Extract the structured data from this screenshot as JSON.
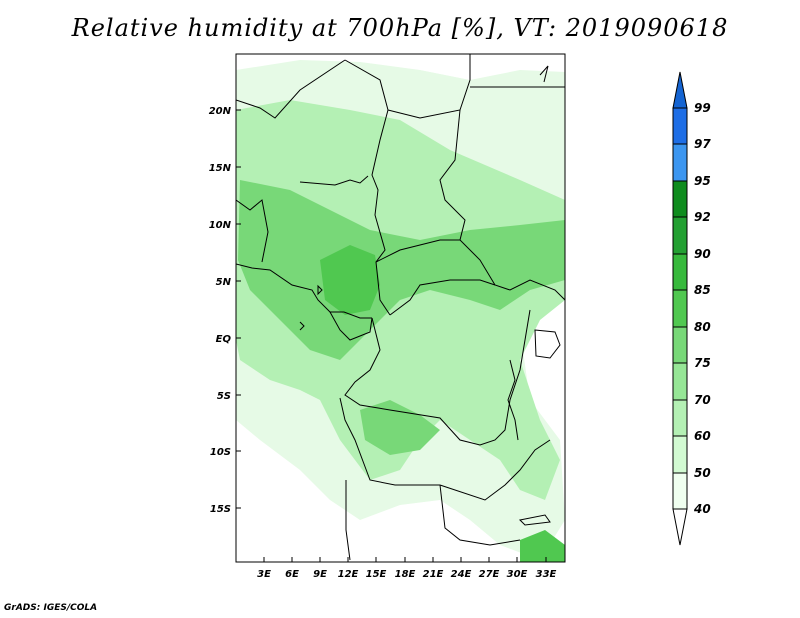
{
  "title": "Relative humidity at 700hPa [%], VT: 2019090618",
  "footer": "GrADS: IGES/COLA",
  "map": {
    "lat_ticks": [
      "20N",
      "15N",
      "10N",
      "5N",
      "EQ",
      "5S",
      "10S",
      "15S"
    ],
    "lon_ticks": [
      "3E",
      "6E",
      "9E",
      "12E",
      "15E",
      "18E",
      "21E",
      "24E",
      "27E",
      "30E",
      "33E"
    ]
  },
  "colorbar": {
    "labels": [
      "99",
      "97",
      "95",
      "92",
      "90",
      "85",
      "80",
      "75",
      "70",
      "60",
      "50",
      "40"
    ],
    "colors": [
      "#1464d2",
      "#1e6ee6",
      "#3c96f0",
      "#0f8c1e",
      "#23a032",
      "#37b93c",
      "#50c850",
      "#78d878",
      "#96e696",
      "#b4f0b4",
      "#d2fad2",
      "#f0fff0"
    ]
  },
  "colors": {
    "land_light": "#e6fae6",
    "land_mid": "#b4f0b4",
    "land_wet": "#78d878",
    "land_core": "#50c850"
  }
}
